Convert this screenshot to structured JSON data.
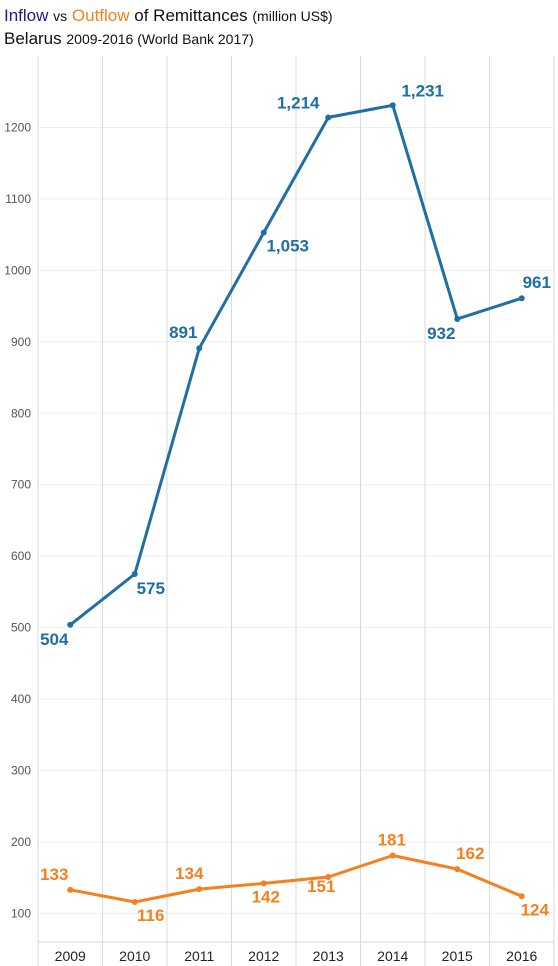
{
  "title": {
    "inflow_word": "Inflow",
    "vs": "vs",
    "outflow_word": "Outflow",
    "rest": "of Remittances",
    "unit": "(million US$)",
    "country": "Belarus",
    "subtitle": "2009-2016 (World Bank 2017)"
  },
  "colors": {
    "inflow_title": "#1f1a8a",
    "inflow": "#1f6fa5",
    "outflow": "#f5801e",
    "grid": "#d9d9d9"
  },
  "chart_data": {
    "type": "line",
    "categories": [
      "2009",
      "2010",
      "2011",
      "2012",
      "2013",
      "2014",
      "2015",
      "2016"
    ],
    "series": [
      {
        "name": "Inflow",
        "values": [
          504,
          575,
          891,
          1053,
          1214,
          1231,
          932,
          961
        ],
        "labels": [
          "504",
          "575",
          "891",
          "1,053",
          "1,214",
          "1,231",
          "932",
          "961"
        ]
      },
      {
        "name": "Outflow",
        "values": [
          133,
          116,
          134,
          142,
          151,
          181,
          162,
          124
        ],
        "labels": [
          "133",
          "116",
          "134",
          "142",
          "151",
          "181",
          "162",
          "124"
        ]
      }
    ],
    "yticks": [
      "100",
      "200",
      "300",
      "400",
      "500",
      "600",
      "700",
      "800",
      "900",
      "1000",
      "1100",
      "1200"
    ],
    "xlabel": "",
    "ylabel": "",
    "ylim": [
      60,
      1300
    ],
    "grid": true,
    "legend": "none"
  }
}
